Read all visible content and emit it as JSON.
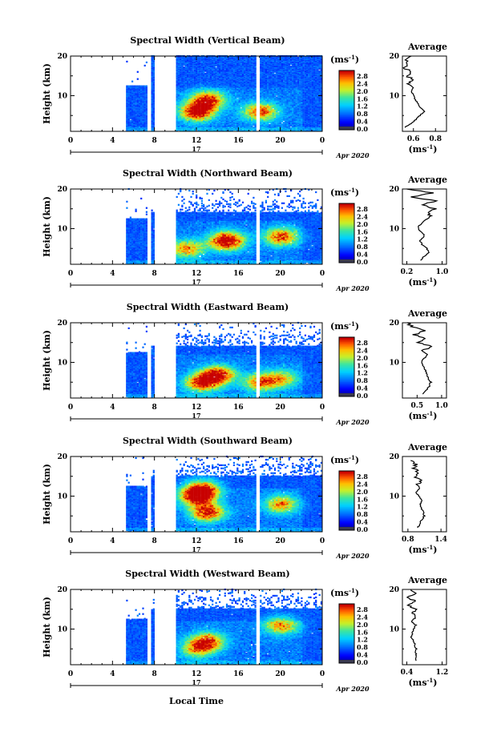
{
  "figure": {
    "x_axis_label": "Local Time",
    "date_label": "Apr 2020",
    "day_label": "17",
    "y_axis_label": "Height (km)",
    "unit_label": "(ms",
    "unit_exp": "-1",
    "avg_title": "Average",
    "avg_xlabel": "(ms",
    "avg_xlabel_exp": "-1"
  },
  "chart_data": [
    {
      "type": "heatmap",
      "title": "Spectral Width (Vertical Beam)",
      "x_ticks": [
        "0",
        "4",
        "8",
        "12",
        "16",
        "20",
        "0"
      ],
      "y_ticks": [
        "20",
        "10"
      ],
      "xlim": [
        0,
        24
      ],
      "ylim": [
        1,
        20
      ],
      "colorbar_ticks": [
        "2.8",
        "2.4",
        "2.0",
        "1.6",
        "1.2",
        "0.8",
        "0.4",
        "0.0"
      ],
      "data_gaps_hours": [
        [
          7.2,
          7.6
        ],
        [
          8.0,
          10.0
        ],
        [
          17.6,
          17.9
        ]
      ],
      "data_start_hour": 5.3,
      "top_km": 20,
      "hot_spots": [
        [
          12,
          6,
          0.9
        ],
        [
          13,
          9,
          0.8
        ],
        [
          18,
          6,
          0.7
        ]
      ],
      "average": {
        "x_ticks": [
          "0.6",
          "0.8"
        ],
        "xlim": [
          0.5,
          0.9
        ],
        "profile": [
          [
            0.52,
            2
          ],
          [
            0.58,
            3
          ],
          [
            0.62,
            4
          ],
          [
            0.66,
            5
          ],
          [
            0.7,
            6
          ],
          [
            0.66,
            7
          ],
          [
            0.64,
            8
          ],
          [
            0.62,
            9
          ],
          [
            0.6,
            10
          ],
          [
            0.58,
            11
          ],
          [
            0.6,
            12
          ],
          [
            0.56,
            13
          ],
          [
            0.6,
            14
          ],
          [
            0.54,
            15
          ],
          [
            0.58,
            16
          ],
          [
            0.52,
            17
          ],
          [
            0.56,
            18
          ],
          [
            0.54,
            19
          ],
          [
            0.58,
            20
          ]
        ]
      }
    },
    {
      "type": "heatmap",
      "title": "Spectral Width (Northward Beam)",
      "x_ticks": [
        "0",
        "4",
        "8",
        "12",
        "16",
        "20",
        "0"
      ],
      "y_ticks": [
        "20",
        "10"
      ],
      "xlim": [
        0,
        24
      ],
      "ylim": [
        1,
        20
      ],
      "colorbar_ticks": [
        "2.8",
        "2.4",
        "2.0",
        "1.6",
        "1.2",
        "0.8",
        "0.4",
        "0.0"
      ],
      "data_gaps_hours": [
        [
          7.2,
          7.6
        ],
        [
          8.0,
          10.0
        ],
        [
          17.6,
          17.9
        ]
      ],
      "data_start_hour": 5.3,
      "top_km": 14,
      "hot_spots": [
        [
          14.8,
          7,
          1.0
        ],
        [
          20,
          8,
          0.7
        ],
        [
          11,
          5,
          0.6
        ]
      ],
      "average": {
        "x_ticks": [
          "0.2",
          "1.0"
        ],
        "xlim": [
          0.1,
          1.1
        ],
        "profile": [
          [
            0.5,
            2
          ],
          [
            0.6,
            3
          ],
          [
            0.72,
            4
          ],
          [
            0.65,
            5
          ],
          [
            0.55,
            6
          ],
          [
            0.5,
            7
          ],
          [
            0.6,
            8
          ],
          [
            0.55,
            9
          ],
          [
            0.45,
            10
          ],
          [
            0.5,
            11
          ],
          [
            0.6,
            12
          ],
          [
            0.75,
            13
          ],
          [
            0.7,
            14
          ],
          [
            0.85,
            15
          ],
          [
            0.55,
            16
          ],
          [
            0.85,
            17
          ],
          [
            0.3,
            18
          ],
          [
            0.8,
            19
          ],
          [
            0.2,
            20
          ]
        ]
      }
    },
    {
      "type": "heatmap",
      "title": "Spectral Width (Eastward Beam)",
      "x_ticks": [
        "0",
        "4",
        "8",
        "12",
        "16",
        "20",
        "0"
      ],
      "y_ticks": [
        "20",
        "10"
      ],
      "xlim": [
        0,
        24
      ],
      "ylim": [
        1,
        20
      ],
      "colorbar_ticks": [
        "2.8",
        "2.4",
        "2.0",
        "1.6",
        "1.2",
        "0.8",
        "0.4",
        "0.0"
      ],
      "data_gaps_hours": [
        [
          7.2,
          7.6
        ],
        [
          8.0,
          10.0
        ],
        [
          17.6,
          17.9
        ]
      ],
      "data_start_hour": 5.3,
      "top_km": 14,
      "hot_spots": [
        [
          12.5,
          5,
          0.8
        ],
        [
          14,
          7,
          0.8
        ],
        [
          18,
          5,
          0.6
        ],
        [
          20,
          6,
          0.5
        ]
      ],
      "average": {
        "x_ticks": [
          "0.5",
          "1.0"
        ],
        "xlim": [
          0.2,
          1.1
        ],
        "profile": [
          [
            0.6,
            2
          ],
          [
            0.7,
            3
          ],
          [
            0.75,
            4
          ],
          [
            0.78,
            5
          ],
          [
            0.72,
            6
          ],
          [
            0.7,
            7
          ],
          [
            0.68,
            8
          ],
          [
            0.62,
            9
          ],
          [
            0.58,
            10
          ],
          [
            0.65,
            11
          ],
          [
            0.72,
            12
          ],
          [
            0.6,
            13
          ],
          [
            0.8,
            14
          ],
          [
            0.5,
            15
          ],
          [
            0.7,
            16
          ],
          [
            0.45,
            17
          ],
          [
            0.65,
            18
          ],
          [
            0.4,
            19
          ],
          [
            0.3,
            20
          ]
        ]
      }
    },
    {
      "type": "heatmap",
      "title": "Spectral Width (Southward Beam)",
      "x_ticks": [
        "0",
        "4",
        "8",
        "12",
        "16",
        "20",
        "0"
      ],
      "y_ticks": [
        "20",
        "10"
      ],
      "xlim": [
        0,
        24
      ],
      "ylim": [
        1,
        20
      ],
      "colorbar_ticks": [
        "2.8",
        "2.4",
        "2.0",
        "1.6",
        "1.2",
        "0.8",
        "0.4",
        "0.0"
      ],
      "data_gaps_hours": [
        [
          7.2,
          7.6
        ],
        [
          8.0,
          10.0
        ],
        [
          17.6,
          17.9
        ]
      ],
      "data_start_hour": 5.3,
      "top_km": 15,
      "hot_spots": [
        [
          12,
          10,
          0.9
        ],
        [
          13,
          6,
          0.8
        ],
        [
          20,
          8,
          0.6
        ],
        [
          12.5,
          12,
          0.7
        ]
      ],
      "average": {
        "x_ticks": [
          "0.8",
          "1.4"
        ],
        "xlim": [
          0.7,
          1.5
        ],
        "profile": [
          [
            0.98,
            2
          ],
          [
            1.02,
            3
          ],
          [
            1.05,
            4
          ],
          [
            1.1,
            5
          ],
          [
            1.08,
            6
          ],
          [
            1.04,
            7
          ],
          [
            1.02,
            8
          ],
          [
            1.06,
            9
          ],
          [
            1.0,
            10
          ],
          [
            0.95,
            11
          ],
          [
            1.0,
            12
          ],
          [
            0.98,
            13
          ],
          [
            1.05,
            14
          ],
          [
            0.92,
            15
          ],
          [
            1.0,
            16
          ],
          [
            0.9,
            17
          ],
          [
            0.95,
            18
          ],
          [
            0.85,
            19
          ]
        ]
      }
    },
    {
      "type": "heatmap",
      "title": "Spectral Width (Westward Beam)",
      "x_ticks": [
        "0",
        "4",
        "8",
        "12",
        "16",
        "20",
        "0"
      ],
      "y_ticks": [
        "20",
        "10"
      ],
      "xlim": [
        0,
        24
      ],
      "ylim": [
        1,
        20
      ],
      "colorbar_ticks": [
        "2.8",
        "2.4",
        "2.0",
        "1.6",
        "1.2",
        "0.8",
        "0.4",
        "0.0"
      ],
      "data_gaps_hours": [
        [
          7.2,
          7.6
        ],
        [
          8.0,
          10.0
        ],
        [
          17.6,
          17.9
        ]
      ],
      "data_start_hour": 5.3,
      "top_km": 15,
      "hot_spots": [
        [
          13,
          7,
          0.7
        ],
        [
          20,
          11,
          0.6
        ],
        [
          12,
          5,
          0.5
        ]
      ],
      "average": {
        "x_ticks": [
          "0.4",
          "1.2"
        ],
        "xlim": [
          0.3,
          1.3
        ],
        "profile": [
          [
            0.6,
            2
          ],
          [
            0.62,
            3
          ],
          [
            0.6,
            4
          ],
          [
            0.62,
            5
          ],
          [
            0.58,
            6
          ],
          [
            0.55,
            7
          ],
          [
            0.5,
            8
          ],
          [
            0.52,
            9
          ],
          [
            0.56,
            10
          ],
          [
            0.6,
            11
          ],
          [
            0.5,
            12
          ],
          [
            0.62,
            13
          ],
          [
            0.55,
            14
          ],
          [
            0.58,
            15
          ],
          [
            0.45,
            16
          ],
          [
            0.6,
            17
          ],
          [
            0.4,
            18
          ],
          [
            0.65,
            19
          ],
          [
            0.5,
            20
          ]
        ]
      }
    }
  ]
}
